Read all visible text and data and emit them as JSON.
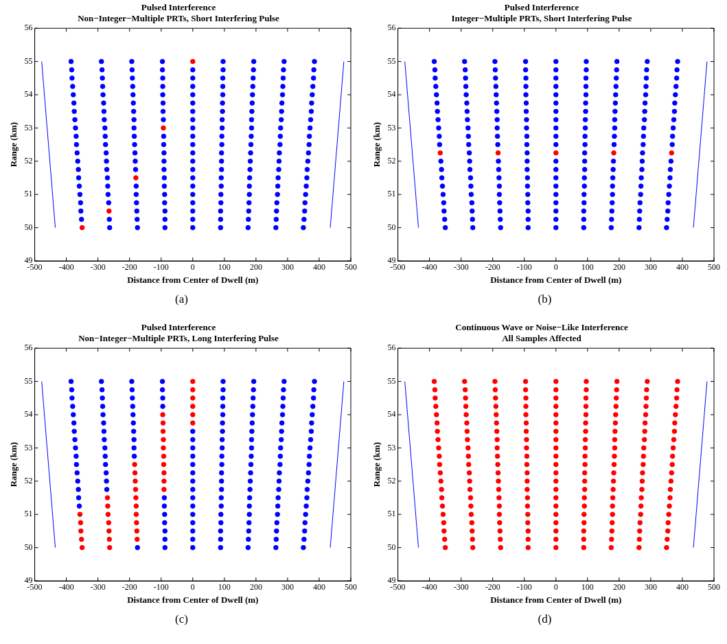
{
  "chart_data": [
    {
      "type": "scatter",
      "title": "Pulsed Interference",
      "subtitle": "Non−Integer−Multiple PRTs, Short Interfering Pulse",
      "xlabel": "Distance from Center of Dwell (m)",
      "ylabel": "Range (km)",
      "xlim": [
        -500,
        500
      ],
      "xticks": [
        -500,
        -400,
        -300,
        -200,
        -100,
        0,
        100,
        200,
        300,
        400,
        500
      ],
      "ylim": [
        49,
        56
      ],
      "yticks": [
        49,
        50,
        51,
        52,
        53,
        54,
        55,
        56
      ],
      "grid": false,
      "annotations": [
        "(a)"
      ],
      "series": [
        {
          "type": "scatter",
          "marker": "circle",
          "color": "#0000ff",
          "x": [
            -352,
            -354,
            -355,
            -357,
            -359,
            -361,
            -362,
            -364,
            -366,
            -368,
            -369,
            -371,
            -373,
            -375,
            -376,
            -378,
            -380,
            -382,
            -383,
            -385,
            -263,
            -264,
            -266,
            -268,
            -269,
            -270,
            -272,
            -273,
            -274,
            -276,
            -277,
            -278,
            -280,
            -281,
            -282,
            -284,
            -285,
            -286,
            -287,
            -289,
            -175,
            -176,
            -177,
            -178,
            -179,
            -179,
            -181,
            -182,
            -183,
            -184,
            -185,
            -186,
            -186,
            -187,
            -188,
            -189,
            -190,
            -191,
            -192,
            -193,
            -88,
            -88,
            -88,
            -89,
            -89,
            -90,
            -90,
            -91,
            -91,
            -91,
            -92,
            -92,
            -93,
            -94,
            -94,
            -95,
            -95,
            -95,
            -96,
            -96,
            0,
            0,
            0,
            0,
            0,
            0,
            0,
            0,
            0,
            0,
            0,
            0,
            0,
            0,
            0,
            0,
            0,
            0,
            0,
            0,
            88,
            88,
            88,
            89,
            89,
            90,
            90,
            91,
            91,
            91,
            92,
            92,
            93,
            93,
            94,
            94,
            95,
            95,
            95,
            96,
            96,
            175,
            176,
            177,
            178,
            179,
            179,
            180,
            181,
            182,
            183,
            184,
            185,
            186,
            186,
            187,
            188,
            189,
            190,
            191,
            192,
            193,
            263,
            264,
            265,
            266,
            268,
            269,
            270,
            272,
            273,
            274,
            276,
            277,
            278,
            280,
            281,
            282,
            284,
            285,
            286,
            287,
            289,
            350,
            352,
            354,
            355,
            357,
            359,
            361,
            362,
            364,
            366,
            368,
            369,
            371,
            373,
            375,
            376,
            378,
            380,
            382,
            383,
            385
          ],
          "values": [
            50.25,
            50.5,
            50.75,
            51,
            51.25,
            51.5,
            51.75,
            52,
            52.25,
            52.5,
            52.75,
            53,
            53.25,
            53.5,
            53.75,
            54,
            54.25,
            54.5,
            54.75,
            55,
            50,
            50.25,
            50.75,
            51,
            51.25,
            51.5,
            51.75,
            52,
            52.25,
            52.5,
            52.75,
            53,
            53.25,
            53.5,
            53.75,
            54,
            54.25,
            54.5,
            54.75,
            55,
            50,
            50.25,
            50.5,
            50.75,
            51,
            51.25,
            51.75,
            52,
            52.25,
            52.5,
            52.75,
            53,
            53.25,
            53.5,
            53.75,
            54,
            54.25,
            54.5,
            54.75,
            55,
            50,
            50.25,
            50.5,
            50.75,
            51,
            51.25,
            51.5,
            51.75,
            52,
            52.25,
            52.5,
            52.75,
            53.25,
            53.5,
            53.75,
            54,
            54.25,
            54.5,
            54.75,
            55,
            50,
            50.25,
            50.5,
            50.75,
            51,
            51.25,
            51.5,
            51.75,
            52,
            52.25,
            52.5,
            52.75,
            53,
            53.25,
            53.5,
            53.75,
            54,
            54.25,
            54.5,
            54.75,
            50,
            50.25,
            50.5,
            50.75,
            51,
            51.25,
            51.5,
            51.75,
            52,
            52.25,
            52.5,
            52.75,
            53,
            53.25,
            53.5,
            53.75,
            54,
            54.25,
            54.5,
            54.75,
            55,
            50,
            50.25,
            50.5,
            50.75,
            51,
            51.25,
            51.5,
            51.75,
            52,
            52.25,
            52.5,
            52.75,
            53,
            53.25,
            53.5,
            53.75,
            54,
            54.25,
            54.5,
            54.75,
            55,
            50,
            50.25,
            50.5,
            50.75,
            51,
            51.25,
            51.5,
            51.75,
            52,
            52.25,
            52.5,
            52.75,
            53,
            53.25,
            53.5,
            53.75,
            54,
            54.25,
            54.5,
            54.75,
            55,
            50,
            50.25,
            50.5,
            50.75,
            51,
            51.25,
            51.5,
            51.75,
            52,
            52.25,
            52.5,
            52.75,
            53,
            53.25,
            53.5,
            53.75,
            54,
            54.25,
            54.5,
            54.75,
            55
          ]
        },
        {
          "type": "scatter",
          "marker": "circle",
          "color": "#ff0000",
          "x": [
            -350,
            -265,
            -180,
            -93,
            0
          ],
          "values": [
            50,
            50.5,
            51.5,
            53,
            55
          ]
        },
        {
          "type": "line",
          "marker": "none",
          "color": "#0000ff",
          "x": [
            -478,
            -435
          ],
          "values": [
            55,
            50
          ]
        },
        {
          "type": "line",
          "marker": "none",
          "color": "#0000ff",
          "x": [
            435,
            478
          ],
          "values": [
            50,
            55
          ]
        }
      ]
    },
    {
      "type": "scatter",
      "title": "Pulsed Interference",
      "subtitle": "Integer−Multiple PRTs, Short Interfering Pulse",
      "xlabel": "Distance from Center of Dwell (m)",
      "ylabel": "Range (km)",
      "xlim": [
        -500,
        500
      ],
      "xticks": [
        -500,
        -400,
        -300,
        -200,
        -100,
        0,
        100,
        200,
        300,
        400,
        500
      ],
      "ylim": [
        49,
        56
      ],
      "yticks": [
        49,
        50,
        51,
        52,
        53,
        54,
        55,
        56
      ],
      "grid": false,
      "annotations": [
        "(b)"
      ],
      "series": [
        {
          "type": "scatter",
          "marker": "circle",
          "color": "#0000ff",
          "x": [
            -350,
            -352,
            -354,
            -355,
            -357,
            -359,
            -361,
            -362,
            -364,
            -368,
            -369,
            -371,
            -373,
            -375,
            -376,
            -378,
            -380,
            -382,
            -383,
            -385,
            -263,
            -264,
            -265,
            -266,
            -268,
            -269,
            -270,
            -272,
            -273,
            -274,
            -276,
            -277,
            -278,
            -280,
            -281,
            -282,
            -284,
            -285,
            -286,
            -287,
            -289,
            -175,
            -176,
            -177,
            -178,
            -179,
            -179,
            -180,
            -181,
            -182,
            -184,
            -185,
            -186,
            -186,
            -187,
            -188,
            -189,
            -190,
            -191,
            -192,
            -193,
            -88,
            -88,
            -88,
            -89,
            -89,
            -90,
            -90,
            -91,
            -91,
            -91,
            -92,
            -92,
            -93,
            -93,
            -94,
            -94,
            -95,
            -95,
            -95,
            -96,
            -96,
            0,
            0,
            0,
            0,
            0,
            0,
            0,
            0,
            0,
            0,
            0,
            0,
            0,
            0,
            0,
            0,
            0,
            0,
            0,
            0,
            88,
            88,
            88,
            89,
            89,
            90,
            90,
            91,
            91,
            91,
            92,
            92,
            93,
            93,
            94,
            94,
            95,
            95,
            95,
            96,
            96,
            175,
            176,
            177,
            178,
            179,
            179,
            180,
            181,
            182,
            184,
            185,
            186,
            186,
            187,
            188,
            189,
            190,
            191,
            192,
            193,
            263,
            264,
            265,
            266,
            268,
            269,
            270,
            272,
            273,
            274,
            276,
            277,
            278,
            280,
            281,
            282,
            284,
            285,
            286,
            287,
            289,
            350,
            352,
            354,
            355,
            357,
            359,
            361,
            362,
            364,
            368,
            369,
            371,
            373,
            375,
            376,
            378,
            380,
            382,
            383,
            385
          ],
          "values": [
            50,
            50.25,
            50.5,
            50.75,
            51,
            51.25,
            51.5,
            51.75,
            52,
            52.5,
            52.75,
            53,
            53.25,
            53.5,
            53.75,
            54,
            54.25,
            54.5,
            54.75,
            55,
            50,
            50.25,
            50.5,
            50.75,
            51,
            51.25,
            51.5,
            51.75,
            52,
            52.25,
            52.5,
            52.75,
            53,
            53.25,
            53.5,
            53.75,
            54,
            54.25,
            54.5,
            54.75,
            55,
            50,
            50.25,
            50.5,
            50.75,
            51,
            51.25,
            51.5,
            51.75,
            52,
            52.5,
            52.75,
            53,
            53.25,
            53.5,
            53.75,
            54,
            54.25,
            54.5,
            54.75,
            55,
            50,
            50.25,
            50.5,
            50.75,
            51,
            51.25,
            51.5,
            51.75,
            52,
            52.25,
            52.5,
            52.75,
            53,
            53.25,
            53.5,
            53.75,
            54,
            54.25,
            54.5,
            54.75,
            55,
            50,
            50.25,
            50.5,
            50.75,
            51,
            51.25,
            51.5,
            51.75,
            52,
            52.5,
            52.75,
            53,
            53.25,
            53.5,
            53.75,
            54,
            54.25,
            54.5,
            54.75,
            55,
            50,
            50.25,
            50.5,
            50.75,
            51,
            51.25,
            51.5,
            51.75,
            52,
            52.25,
            52.5,
            52.75,
            53,
            53.25,
            53.5,
            53.75,
            54,
            54.25,
            54.5,
            54.75,
            55,
            50,
            50.25,
            50.5,
            50.75,
            51,
            51.25,
            51.5,
            51.75,
            52,
            52.5,
            52.75,
            53,
            53.25,
            53.5,
            53.75,
            54,
            54.25,
            54.5,
            54.75,
            55,
            50,
            50.25,
            50.5,
            50.75,
            51,
            51.25,
            51.5,
            51.75,
            52,
            52.25,
            52.5,
            52.75,
            53,
            53.25,
            53.5,
            53.75,
            54,
            54.25,
            54.5,
            54.75,
            55,
            50,
            50.25,
            50.5,
            50.75,
            51,
            51.25,
            51.5,
            51.75,
            52,
            52.5,
            52.75,
            53,
            53.25,
            53.5,
            53.75,
            54,
            54.25,
            54.5,
            54.75,
            55
          ]
        },
        {
          "type": "scatter",
          "marker": "circle",
          "color": "#ff0000",
          "x": [
            -366,
            -183,
            0,
            183,
            366
          ],
          "values": [
            52.25,
            52.25,
            52.25,
            52.25,
            52.25
          ]
        },
        {
          "type": "line",
          "marker": "none",
          "color": "#0000ff",
          "x": [
            -478,
            -435
          ],
          "values": [
            55,
            50
          ]
        },
        {
          "type": "line",
          "marker": "none",
          "color": "#0000ff",
          "x": [
            435,
            478
          ],
          "values": [
            50,
            55
          ]
        }
      ]
    },
    {
      "type": "scatter",
      "title": "Pulsed Interference",
      "subtitle": "Non−Integer−Multiple PRTs, Long Interfering Pulse",
      "xlabel": "Distance from Center of Dwell (m)",
      "ylabel": "Range (km)",
      "xlim": [
        -500,
        500
      ],
      "xticks": [
        -500,
        -400,
        -300,
        -200,
        -100,
        0,
        100,
        200,
        300,
        400,
        500
      ],
      "ylim": [
        49,
        56
      ],
      "yticks": [
        49,
        50,
        51,
        52,
        53,
        54,
        55,
        56
      ],
      "grid": false,
      "annotations": [
        "(c)"
      ],
      "series": [
        {
          "type": "scatter",
          "marker": "circle",
          "color": "#0000ff",
          "x": [
            -359,
            -361,
            -362,
            -364,
            -366,
            -368,
            -369,
            -371,
            -373,
            -375,
            -376,
            -378,
            -380,
            -382,
            -383,
            -385,
            -272,
            -273,
            -274,
            -276,
            -277,
            -278,
            -280,
            -281,
            -282,
            -284,
            -285,
            -286,
            -287,
            -289,
            -175,
            -185,
            -186,
            -186,
            -187,
            -188,
            -189,
            -190,
            -191,
            -192,
            -193,
            -88,
            -88,
            -88,
            -89,
            -89,
            -90,
            -90,
            -95,
            -95,
            -96,
            -96,
            0,
            0,
            0,
            0,
            0,
            0,
            0,
            0,
            0,
            0,
            0,
            0,
            0,
            0,
            0,
            88,
            88,
            88,
            89,
            89,
            90,
            90,
            91,
            91,
            91,
            92,
            92,
            93,
            93,
            94,
            94,
            95,
            95,
            95,
            96,
            96,
            175,
            176,
            177,
            178,
            179,
            179,
            180,
            181,
            182,
            183,
            184,
            185,
            186,
            186,
            187,
            188,
            189,
            190,
            191,
            192,
            193,
            263,
            264,
            265,
            266,
            268,
            269,
            270,
            272,
            273,
            274,
            276,
            277,
            278,
            280,
            281,
            282,
            284,
            285,
            286,
            287,
            289,
            350,
            352,
            354,
            355,
            357,
            359,
            361,
            362,
            364,
            366,
            368,
            369,
            371,
            373,
            375,
            376,
            378,
            380,
            382,
            383,
            385
          ],
          "values": [
            51.25,
            51.5,
            51.75,
            52,
            52.25,
            52.5,
            52.75,
            53,
            53.25,
            53.5,
            53.75,
            54,
            54.25,
            54.5,
            54.75,
            55,
            51.75,
            52,
            52.25,
            52.5,
            52.75,
            53,
            53.25,
            53.5,
            53.75,
            54,
            54.25,
            54.5,
            54.75,
            55,
            50,
            52.75,
            53,
            53.25,
            53.5,
            53.75,
            54,
            54.25,
            54.5,
            54.75,
            55,
            50,
            50.25,
            50.5,
            50.75,
            51,
            51.25,
            51.5,
            54.25,
            54.5,
            54.75,
            55,
            50,
            50.25,
            50.5,
            50.75,
            51,
            51.25,
            51.5,
            51.75,
            52,
            52.25,
            52.5,
            52.75,
            53,
            53.25,
            53.5,
            50,
            50.25,
            50.5,
            50.75,
            51,
            51.25,
            51.5,
            51.75,
            52,
            52.25,
            52.5,
            52.75,
            53,
            53.25,
            53.5,
            53.75,
            54,
            54.25,
            54.5,
            54.75,
            55,
            50,
            50.25,
            50.5,
            50.75,
            51,
            51.25,
            51.5,
            51.75,
            52,
            52.25,
            52.5,
            52.75,
            53,
            53.25,
            53.5,
            53.75,
            54,
            54.25,
            54.5,
            54.75,
            55,
            50,
            50.25,
            50.5,
            50.75,
            51,
            51.25,
            51.5,
            51.75,
            52,
            52.25,
            52.5,
            52.75,
            53,
            53.25,
            53.5,
            53.75,
            54,
            54.25,
            54.5,
            54.75,
            55,
            50,
            50.25,
            50.5,
            50.75,
            51,
            51.25,
            51.5,
            51.75,
            52,
            52.25,
            52.5,
            52.75,
            53,
            53.25,
            53.5,
            53.75,
            54,
            54.25,
            54.5,
            54.75,
            55
          ]
        },
        {
          "type": "scatter",
          "marker": "circle",
          "color": "#ff0000",
          "x": [
            -350,
            -352,
            -354,
            -355,
            -357,
            -263,
            -264,
            -265,
            -266,
            -268,
            -269,
            -270,
            -176,
            -177,
            -178,
            -179,
            -179,
            -180,
            -181,
            -182,
            -183,
            -184,
            -91,
            -91,
            -91,
            -92,
            -92,
            -93,
            -93,
            -94,
            -94,
            -95,
            0,
            0,
            0,
            0,
            0,
            0
          ],
          "values": [
            50,
            50.25,
            50.5,
            50.75,
            51,
            50,
            50.25,
            50.5,
            50.75,
            51,
            51.25,
            51.5,
            50.25,
            50.5,
            50.75,
            51,
            51.25,
            51.5,
            51.75,
            52,
            52.25,
            52.5,
            51.75,
            52,
            52.25,
            52.5,
            52.75,
            53,
            53.25,
            53.5,
            53.75,
            54,
            53.75,
            54,
            54.25,
            54.5,
            54.75,
            55
          ]
        },
        {
          "type": "line",
          "marker": "none",
          "color": "#0000ff",
          "x": [
            -478,
            -435
          ],
          "values": [
            55,
            50
          ]
        },
        {
          "type": "line",
          "marker": "none",
          "color": "#0000ff",
          "x": [
            435,
            478
          ],
          "values": [
            50,
            55
          ]
        }
      ]
    },
    {
      "type": "scatter",
      "title": "Continuous Wave or Noise−Like Interference",
      "subtitle": "All Samples Affected",
      "xlabel": "Distance from Center of Dwell (m)",
      "ylabel": "Range (km)",
      "xlim": [
        -500,
        500
      ],
      "xticks": [
        -500,
        -400,
        -300,
        -200,
        -100,
        0,
        100,
        200,
        300,
        400,
        500
      ],
      "ylim": [
        49,
        56
      ],
      "yticks": [
        49,
        50,
        51,
        52,
        53,
        54,
        55,
        56
      ],
      "grid": false,
      "annotations": [
        "(d)"
      ],
      "series": [
        {
          "type": "scatter",
          "marker": "circle",
          "color": "#ff0000",
          "x": [
            -350,
            -352,
            -354,
            -355,
            -357,
            -359,
            -361,
            -362,
            -364,
            -366,
            -368,
            -369,
            -371,
            -373,
            -375,
            -376,
            -378,
            -380,
            -382,
            -383,
            -385,
            -263,
            -264,
            -265,
            -266,
            -268,
            -269,
            -270,
            -272,
            -273,
            -274,
            -276,
            -277,
            -278,
            -280,
            -281,
            -282,
            -284,
            -285,
            -286,
            -287,
            -289,
            -175,
            -176,
            -177,
            -178,
            -179,
            -179,
            -180,
            -181,
            -182,
            -183,
            -184,
            -185,
            -186,
            -186,
            -187,
            -188,
            -189,
            -190,
            -191,
            -192,
            -193,
            -88,
            -88,
            -88,
            -89,
            -89,
            -90,
            -90,
            -91,
            -91,
            -91,
            -92,
            -92,
            -93,
            -93,
            -94,
            -94,
            -95,
            -95,
            -95,
            -96,
            -96,
            0,
            0,
            0,
            0,
            0,
            0,
            0,
            0,
            0,
            0,
            0,
            0,
            0,
            0,
            0,
            0,
            0,
            0,
            0,
            0,
            0,
            88,
            88,
            88,
            89,
            89,
            90,
            90,
            91,
            91,
            91,
            92,
            92,
            93,
            93,
            94,
            94,
            95,
            95,
            95,
            96,
            96,
            175,
            176,
            177,
            178,
            179,
            179,
            180,
            181,
            182,
            183,
            184,
            185,
            186,
            186,
            187,
            188,
            189,
            190,
            191,
            192,
            193,
            263,
            264,
            265,
            266,
            268,
            269,
            270,
            272,
            273,
            274,
            276,
            277,
            278,
            280,
            281,
            282,
            284,
            285,
            286,
            287,
            289,
            350,
            352,
            354,
            355,
            357,
            359,
            361,
            362,
            364,
            366,
            368,
            369,
            371,
            373,
            375,
            376,
            378,
            380,
            382,
            383,
            385
          ],
          "values": [
            50,
            50.25,
            50.5,
            50.75,
            51,
            51.25,
            51.5,
            51.75,
            52,
            52.25,
            52.5,
            52.75,
            53,
            53.25,
            53.5,
            53.75,
            54,
            54.25,
            54.5,
            54.75,
            55,
            50,
            50.25,
            50.5,
            50.75,
            51,
            51.25,
            51.5,
            51.75,
            52,
            52.25,
            52.5,
            52.75,
            53,
            53.25,
            53.5,
            53.75,
            54,
            54.25,
            54.5,
            54.75,
            55,
            50,
            50.25,
            50.5,
            50.75,
            51,
            51.25,
            51.5,
            51.75,
            52,
            52.25,
            52.5,
            52.75,
            53,
            53.25,
            53.5,
            53.75,
            54,
            54.25,
            54.5,
            54.75,
            55,
            50,
            50.25,
            50.5,
            50.75,
            51,
            51.25,
            51.5,
            51.75,
            52,
            52.25,
            52.5,
            52.75,
            53,
            53.25,
            53.5,
            53.75,
            54,
            54.25,
            54.5,
            54.75,
            55,
            50,
            50.25,
            50.5,
            50.75,
            51,
            51.25,
            51.5,
            51.75,
            52,
            52.25,
            52.5,
            52.75,
            53,
            53.25,
            53.5,
            53.75,
            54,
            54.25,
            54.5,
            54.75,
            55,
            50,
            50.25,
            50.5,
            50.75,
            51,
            51.25,
            51.5,
            51.75,
            52,
            52.25,
            52.5,
            52.75,
            53,
            53.25,
            53.5,
            53.75,
            54,
            54.25,
            54.5,
            54.75,
            55,
            50,
            50.25,
            50.5,
            50.75,
            51,
            51.25,
            51.5,
            51.75,
            52,
            52.25,
            52.5,
            52.75,
            53,
            53.25,
            53.5,
            53.75,
            54,
            54.25,
            54.5,
            54.75,
            55,
            50,
            50.25,
            50.5,
            50.75,
            51,
            51.25,
            51.5,
            51.75,
            52,
            52.25,
            52.5,
            52.75,
            53,
            53.25,
            53.5,
            53.75,
            54,
            54.25,
            54.5,
            54.75,
            55,
            50,
            50.25,
            50.5,
            50.75,
            51,
            51.25,
            51.5,
            51.75,
            52,
            52.25,
            52.5,
            52.75,
            53,
            53.25,
            53.5,
            53.75,
            54,
            54.25,
            54.5,
            54.75,
            55
          ]
        },
        {
          "type": "line",
          "marker": "none",
          "color": "#0000ff",
          "x": [
            -478,
            -435
          ],
          "values": [
            55,
            50
          ]
        },
        {
          "type": "line",
          "marker": "none",
          "color": "#0000ff",
          "x": [
            435,
            478
          ],
          "values": [
            50,
            55
          ]
        }
      ]
    }
  ]
}
